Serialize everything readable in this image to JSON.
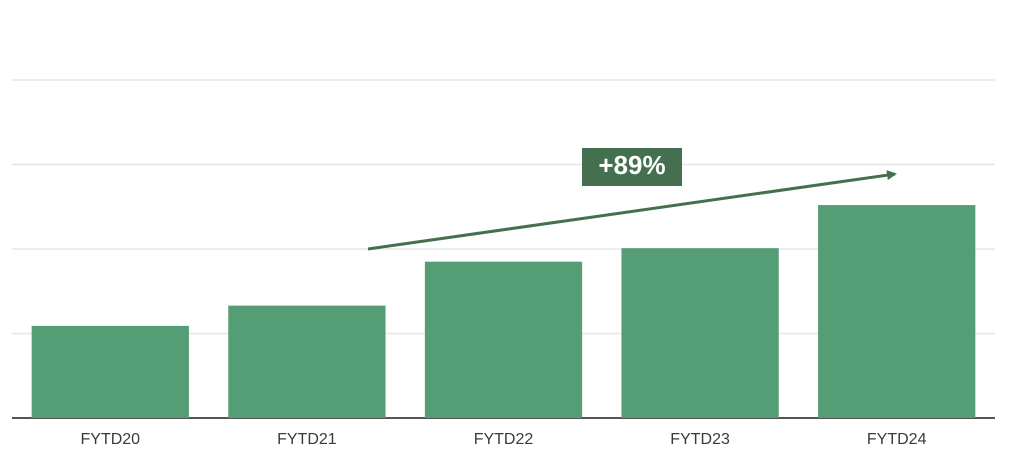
{
  "chart_data": {
    "type": "bar",
    "categories": [
      "FYTD20",
      "FYTD21",
      "FYTD22",
      "FYTD23",
      "FYTD24"
    ],
    "values": [
      1.09,
      1.33,
      1.85,
      2.01,
      2.52
    ],
    "color": "#559e75",
    "ylim": [
      0,
      4
    ],
    "yticks": [
      0,
      1,
      2,
      3,
      4
    ],
    "grid": true,
    "annotation": "+89%"
  }
}
